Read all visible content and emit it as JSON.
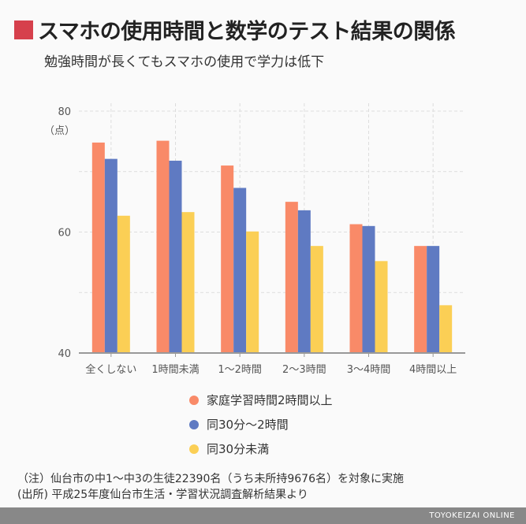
{
  "header": {
    "title": "スマホの使用時間と数学のテスト結果の関係",
    "subtitle": "勉強時間が長くてもスマホの使用で学力は低下",
    "accent": "#d6404c"
  },
  "chart_data": {
    "type": "bar",
    "ylabel": "（点）",
    "ylim": [
      40,
      80
    ],
    "yticks": [
      "40",
      "60",
      "80"
    ],
    "grid": true,
    "categories": [
      "全くしない",
      "1時間未満",
      "1〜2時間",
      "2〜3時間",
      "3〜4時間",
      "4時間以上"
    ],
    "series": [
      {
        "name": "家庭学習時間2時間以上",
        "color": "#f98a68",
        "values": [
          74.8,
          75.1,
          71.0,
          65.0,
          61.3,
          57.7
        ]
      },
      {
        "name": "同30分〜2時間",
        "color": "#5f7ac2",
        "values": [
          72.1,
          71.8,
          67.3,
          63.6,
          61.0,
          57.7
        ]
      },
      {
        "name": "同30分未満",
        "color": "#fbcf55",
        "values": [
          62.7,
          63.3,
          60.1,
          57.7,
          55.2,
          47.9
        ]
      }
    ],
    "legend_position": "bottom"
  },
  "notes": {
    "note": "（注）仙台市の中1〜中3の生徒22390名（うち未所持9676名）を対象に実施",
    "source": "(出所) 平成25年度仙台市生活・学習状況調査解析結果より"
  },
  "footer": {
    "brand": "TOYOKEIZAI ONLINE"
  }
}
